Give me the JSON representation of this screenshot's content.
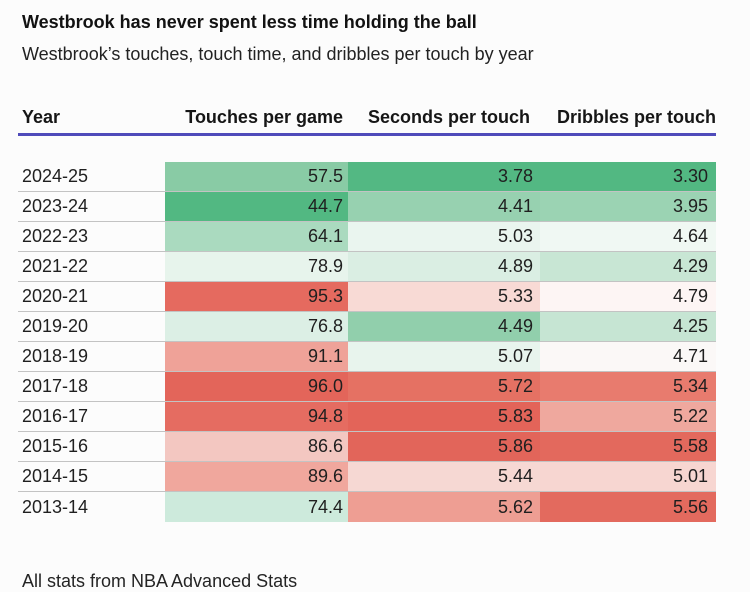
{
  "title": "Westbrook has never spent less time holding the ball",
  "subtitle": "Westbrook’s touches, touch time, and dribbles per touch by year",
  "source_note": "All stats from NBA Advanced Stats",
  "colors": {
    "header_underline": "#4F4BBA",
    "row_separator": "#C3C3C3",
    "heat_green_max": "#52B882",
    "heat_red_max": "#E2655A",
    "background": "#FCFCFC"
  },
  "table": {
    "columns": [
      "Year",
      "Touches per game",
      "Seconds per touch",
      "Dribbles per touch"
    ],
    "rows": [
      {
        "year": "2024-25",
        "touches": "57.5",
        "seconds": "3.78",
        "dribbles": "3.30",
        "colors": {
          "touches": "#89CBA5",
          "seconds": "#53B883",
          "dribbles": "#52B882"
        }
      },
      {
        "year": "2023-24",
        "touches": "44.7",
        "seconds": "4.41",
        "dribbles": "3.95",
        "colors": {
          "touches": "#52B882",
          "seconds": "#97D1B0",
          "dribbles": "#9BD3B3"
        }
      },
      {
        "year": "2022-23",
        "touches": "64.1",
        "seconds": "5.03",
        "dribbles": "4.64",
        "colors": {
          "touches": "#AADABF",
          "seconds": "#EAF5EF",
          "dribbles": "#F0F8F3"
        }
      },
      {
        "year": "2021-22",
        "touches": "78.9",
        "seconds": "4.89",
        "dribbles": "4.29",
        "colors": {
          "touches": "#E7F4EC",
          "seconds": "#DAEEE3",
          "dribbles": "#C8E6D4"
        }
      },
      {
        "year": "2020-21",
        "touches": "95.3",
        "seconds": "5.33",
        "dribbles": "4.79",
        "colors": {
          "touches": "#E56A5F",
          "seconds": "#F8DAD5",
          "dribbles": "#FDF5F4"
        }
      },
      {
        "year": "2019-20",
        "touches": "76.8",
        "seconds": "4.49",
        "dribbles": "4.25",
        "colors": {
          "touches": "#DCEFE5",
          "seconds": "#91CFAC",
          "dribbles": "#C6E5D3"
        }
      },
      {
        "year": "2018-19",
        "touches": "91.1",
        "seconds": "5.07",
        "dribbles": "4.71",
        "colors": {
          "touches": "#EFA298",
          "seconds": "#E8F4ED",
          "dribbles": "#FBF8F7"
        }
      },
      {
        "year": "2017-18",
        "touches": "96.0",
        "seconds": "5.72",
        "dribbles": "5.34",
        "colors": {
          "touches": "#E3655A",
          "seconds": "#E57163",
          "dribbles": "#E87B6E"
        }
      },
      {
        "year": "2016-17",
        "touches": "94.8",
        "seconds": "5.83",
        "dribbles": "5.22",
        "colors": {
          "touches": "#E56C61",
          "seconds": "#E36459",
          "dribbles": "#EFA89E"
        }
      },
      {
        "year": "2015-16",
        "touches": "86.6",
        "seconds": "5.86",
        "dribbles": "5.58",
        "colors": {
          "touches": "#F3C7C1",
          "seconds": "#E2655A",
          "dribbles": "#E3695D"
        }
      },
      {
        "year": "2014-15",
        "touches": "89.6",
        "seconds": "5.44",
        "dribbles": "5.01",
        "colors": {
          "touches": "#F0A79D",
          "seconds": "#F6D8D3",
          "dribbles": "#F7D6D1"
        }
      },
      {
        "year": "2013-14",
        "touches": "74.4",
        "seconds": "5.62",
        "dribbles": "5.56",
        "colors": {
          "touches": "#CDEADC",
          "seconds": "#EE9E93",
          "dribbles": "#E36A5E"
        }
      }
    ]
  },
  "chart_data": {
    "type": "heatmap",
    "title": "Westbrook has never spent less time holding the ball",
    "subtitle": "Westbrook’s touches, touch time, and dribbles per touch by year",
    "categories": [
      "2024-25",
      "2023-24",
      "2022-23",
      "2021-22",
      "2020-21",
      "2019-20",
      "2018-19",
      "2017-18",
      "2016-17",
      "2015-16",
      "2014-15",
      "2013-14"
    ],
    "series": [
      {
        "name": "Touches per game",
        "values": [
          57.5,
          44.7,
          64.1,
          78.9,
          95.3,
          76.8,
          91.1,
          96.0,
          94.8,
          86.6,
          89.6,
          74.4
        ]
      },
      {
        "name": "Seconds per touch",
        "values": [
          3.78,
          4.41,
          5.03,
          4.89,
          5.33,
          4.49,
          5.07,
          5.72,
          5.83,
          5.86,
          5.44,
          5.62
        ]
      },
      {
        "name": "Dribbles per touch",
        "values": [
          3.3,
          3.95,
          4.64,
          4.29,
          4.79,
          4.25,
          4.71,
          5.34,
          5.22,
          5.58,
          5.01,
          5.56
        ]
      }
    ],
    "color_scale": "diverging per column: green at column minimum, white near column mean, red at column maximum",
    "note": "All stats from NBA Advanced Stats",
    "legend_position": "none",
    "grid": "horizontal row separators"
  }
}
